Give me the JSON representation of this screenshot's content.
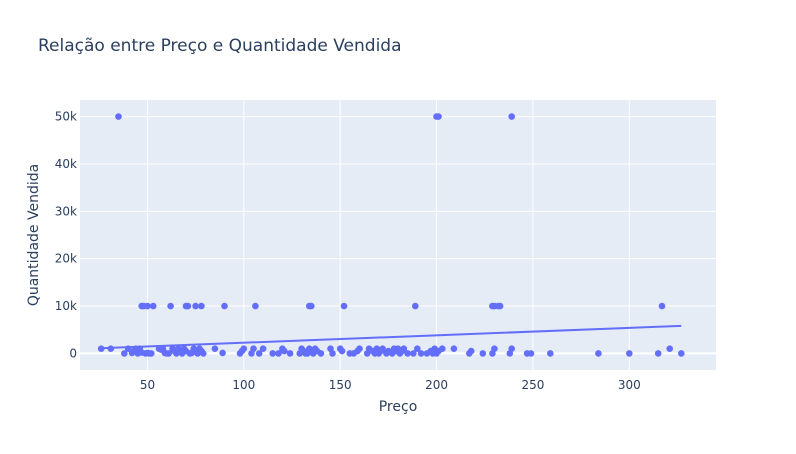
{
  "chart_data": {
    "type": "scatter",
    "title": "Relação entre Preço e Quantidade Vendida",
    "xlabel": "Preço",
    "ylabel": "Quantidade Vendida",
    "xlim": [
      15,
      345
    ],
    "ylim": [
      -3500,
      53500
    ],
    "xticks": [
      50,
      100,
      150,
      200,
      250,
      300
    ],
    "xtick_labels": [
      "50",
      "100",
      "150",
      "200",
      "250",
      "300"
    ],
    "yticks": [
      0,
      10000,
      20000,
      30000,
      40000,
      50000
    ],
    "ytick_labels": [
      "0",
      "10k",
      "20k",
      "30k",
      "40k",
      "50k"
    ],
    "grid": true,
    "colors": {
      "marker": "#636efa",
      "plot_bg": "#e5ecf6",
      "grid": "#ffffff",
      "text": "#2a3f5f"
    },
    "series": [
      {
        "type": "scatter",
        "x": [
          35,
          200,
          201,
          239,
          47,
          48,
          50,
          53,
          62,
          70,
          71,
          75,
          78,
          90,
          106,
          134,
          135,
          152,
          189,
          229,
          230,
          232,
          233,
          317,
          26,
          31,
          38,
          40,
          42,
          43,
          44,
          45,
          46,
          47,
          49,
          50,
          51,
          52,
          56,
          57,
          58,
          59,
          60,
          61,
          63,
          64,
          65,
          66,
          67,
          68,
          69,
          70,
          72,
          73,
          74,
          75,
          76,
          77,
          78,
          79,
          85,
          89,
          98,
          99,
          100,
          104,
          105,
          108,
          110,
          115,
          118,
          120,
          121,
          124,
          129,
          130,
          131,
          132,
          133,
          134,
          135,
          136,
          137,
          138,
          140,
          145,
          146,
          150,
          151,
          155,
          157,
          159,
          160,
          164,
          165,
          167,
          168,
          169,
          170,
          171,
          172,
          174,
          175,
          177,
          178,
          179,
          180,
          181,
          182,
          183,
          185,
          188,
          190,
          192,
          195,
          197,
          198,
          199,
          200,
          201,
          203,
          209,
          217,
          218,
          224,
          229,
          230,
          238,
          239,
          247,
          249,
          259,
          284,
          300,
          315,
          321,
          327
        ],
        "y": [
          50000,
          50000,
          50000,
          50000,
          10000,
          10000,
          10000,
          10000,
          10000,
          10000,
          10000,
          10000,
          10000,
          10000,
          10000,
          10000,
          10000,
          10000,
          10000,
          10000,
          10000,
          10000,
          10000,
          10000,
          1000,
          1000,
          0,
          1000,
          100,
          500,
          1000,
          0,
          1000,
          200,
          0,
          100,
          0,
          0,
          1000,
          800,
          1000,
          100,
          0,
          0,
          1000,
          500,
          0,
          1000,
          800,
          0,
          1000,
          500,
          0,
          100,
          1000,
          500,
          0,
          1000,
          500,
          0,
          1000,
          100,
          0,
          500,
          1000,
          0,
          1000,
          0,
          1000,
          0,
          0,
          1000,
          500,
          0,
          0,
          1000,
          500,
          0,
          0,
          1000,
          500,
          0,
          1000,
          500,
          0,
          1000,
          0,
          1000,
          500,
          0,
          0,
          500,
          1000,
          0,
          1000,
          500,
          0,
          1000,
          0,
          500,
          1000,
          0,
          500,
          0,
          1000,
          500,
          1000,
          0,
          500,
          1000,
          0,
          0,
          1000,
          0,
          0,
          500,
          0,
          1000,
          0,
          500,
          1000,
          1000,
          0,
          500,
          0,
          0,
          1000,
          0,
          1000,
          0,
          0,
          0,
          0,
          0,
          0,
          1000,
          0
        ]
      },
      {
        "type": "line",
        "x": [
          26,
          327
        ],
        "y": [
          1100,
          5800
        ]
      }
    ]
  }
}
